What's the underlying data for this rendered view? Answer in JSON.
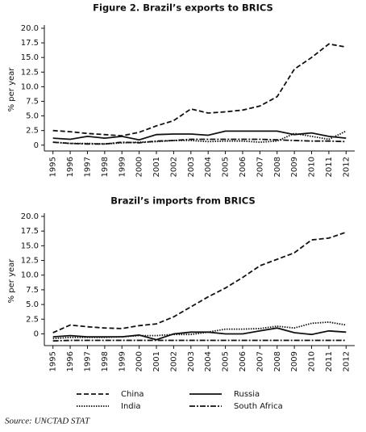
{
  "chart_data": [
    {
      "type": "line",
      "title": "Figure 2. Brazil’s exports to BRICS",
      "y_label": "% per year",
      "categories": [
        "1995",
        "1996",
        "1997",
        "1998",
        "1999",
        "2000",
        "2001",
        "2002",
        "2003",
        "2004",
        "2005",
        "2006",
        "2007",
        "2008",
        "2009",
        "2010",
        "2011",
        "2012"
      ],
      "ylim": [
        -1,
        20
      ],
      "yticks": [
        0,
        2.5,
        {
          "value": 5,
          "label": "5.0"
        },
        7.5,
        {
          "value": 10,
          "label": "10.0"
        },
        12.5,
        {
          "value": 15,
          "label": "15.0"
        },
        17.5,
        {
          "value": 20,
          "label": "20.0"
        }
      ],
      "series": [
        {
          "style": "dashed",
          "color": "#111111",
          "values": [
            2.5,
            2.3,
            2.0,
            1.8,
            1.6,
            2.2,
            3.3,
            4.2,
            6.2,
            5.5,
            5.7,
            6.0,
            6.7,
            8.3,
            13.0,
            15.0,
            17.3,
            16.8
          ]
        },
        {
          "style": "solid",
          "color": "#111111",
          "values": [
            1.2,
            1.0,
            1.5,
            1.2,
            1.5,
            0.9,
            1.8,
            1.9,
            1.9,
            1.7,
            2.4,
            2.4,
            2.4,
            2.4,
            1.8,
            2.1,
            1.5,
            1.2
          ]
        },
        {
          "style": "dotted",
          "color": "#111111",
          "values": [
            0.5,
            0.3,
            0.3,
            0.2,
            0.4,
            0.5,
            0.6,
            0.8,
            0.8,
            0.6,
            0.7,
            0.7,
            0.5,
            0.7,
            2.0,
            1.5,
            1.0,
            2.4
          ]
        },
        {
          "style": "dashdot",
          "color": "#111111",
          "values": [
            0.5,
            0.3,
            0.2,
            0.2,
            0.5,
            0.4,
            0.7,
            0.8,
            1.0,
            1.0,
            1.0,
            1.0,
            1.0,
            0.9,
            0.8,
            0.7,
            0.7,
            0.6
          ]
        }
      ]
    },
    {
      "type": "line",
      "title": "Brazil’s imports from BRICS",
      "y_label": "% per year",
      "categories": [
        "1995",
        "1996",
        "1997",
        "1998",
        "1999",
        "2000",
        "2001",
        "2002",
        "2003",
        "2004",
        "2005",
        "2006",
        "2007",
        "2008",
        "2009",
        "2010",
        "2011",
        "2012"
      ],
      "ylim": [
        -2,
        20
      ],
      "yticks": [
        0,
        2.5,
        {
          "value": 5,
          "label": "5.0"
        },
        7.5,
        {
          "value": 10,
          "label": "10.0"
        },
        12.5,
        {
          "value": 15,
          "label": "15.0"
        },
        17.5,
        {
          "value": 20,
          "label": "20.0"
        }
      ],
      "series": [
        {
          "name": "China",
          "style": "dashed",
          "color": "#111111",
          "values": [
            0.2,
            1.5,
            1.2,
            1.0,
            0.9,
            1.4,
            1.7,
            2.9,
            4.6,
            6.3,
            7.8,
            9.6,
            11.6,
            12.7,
            13.8,
            16.0,
            16.3,
            17.3
          ]
        },
        {
          "name": "Russia",
          "style": "solid",
          "color": "#111111",
          "values": [
            -0.5,
            -0.3,
            -0.5,
            -0.5,
            -0.5,
            -0.2,
            -1.0,
            0.0,
            0.3,
            0.3,
            0.0,
            0.0,
            0.5,
            1.0,
            0.2,
            -0.1,
            0.5,
            0.3
          ]
        },
        {
          "name": "India",
          "style": "dotted",
          "color": "#111111",
          "values": [
            -0.8,
            -0.6,
            -0.6,
            -0.6,
            -0.5,
            -0.3,
            -0.3,
            -0.1,
            -0.1,
            0.3,
            0.8,
            0.8,
            0.9,
            1.3,
            1.0,
            1.8,
            2.0,
            1.5
          ]
        },
        {
          "name": "South Africa",
          "style": "dashdot",
          "color": "#111111",
          "values": [
            -1.2,
            -1.1,
            -1.1,
            -1.1,
            -1.1,
            -1.1,
            -1.1,
            -1.1,
            -1.1,
            -1.1,
            -1.1,
            -1.1,
            -1.1,
            -1.1,
            -1.1,
            -1.1,
            -1.1,
            -1.1
          ]
        }
      ]
    }
  ],
  "source": "Source: UNCTAD STAT"
}
